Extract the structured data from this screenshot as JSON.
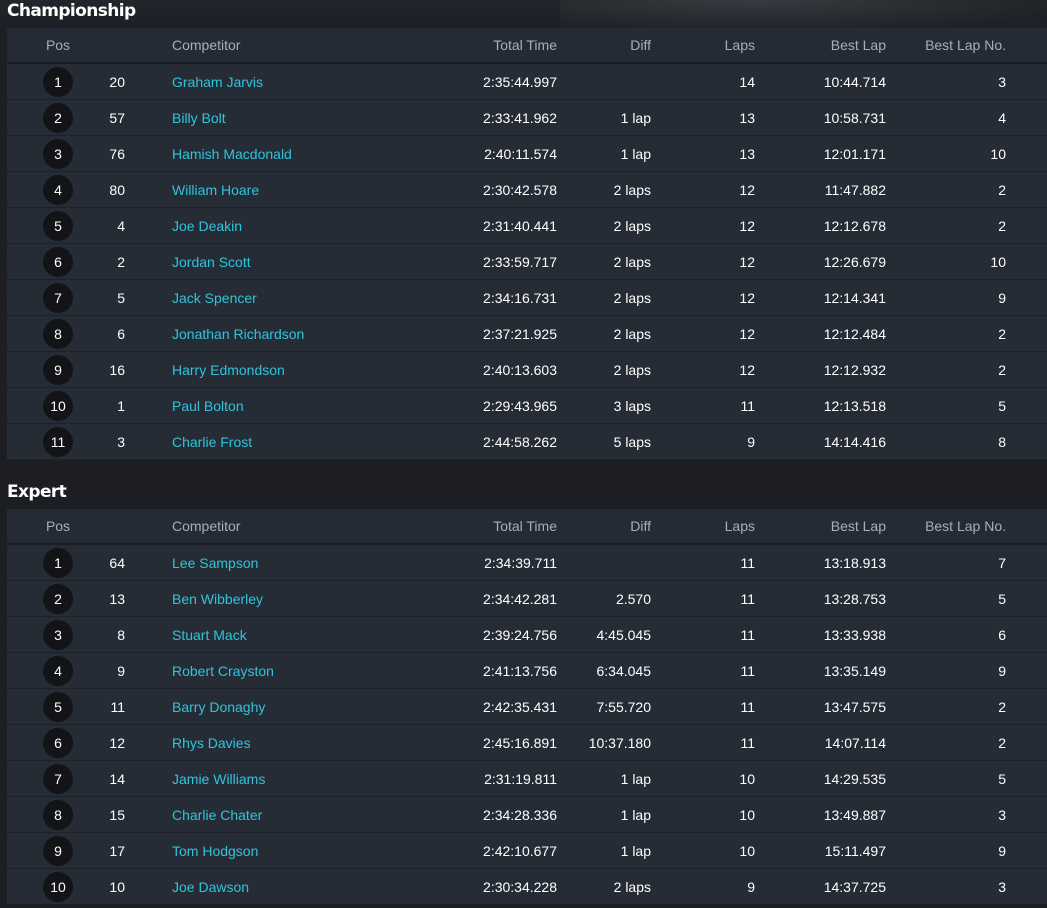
{
  "columns": {
    "pos": "Pos",
    "competitor": "Competitor",
    "total_time": "Total Time",
    "diff": "Diff",
    "laps": "Laps",
    "best_lap": "Best Lap",
    "best_lap_no": "Best Lap No."
  },
  "colors": {
    "link": "#2fc4dc",
    "table_bg": "#262c35",
    "page_bg": "#1b1e23",
    "badge_bg": "#121418"
  },
  "sections": [
    {
      "title": "Championship",
      "rows": [
        {
          "pos": "1",
          "num": "20",
          "competitor": "Graham Jarvis",
          "total_time": "2:35:44.997",
          "diff": "",
          "laps": "14",
          "best_lap": "10:44.714",
          "best_lap_no": "3"
        },
        {
          "pos": "2",
          "num": "57",
          "competitor": "Billy Bolt",
          "total_time": "2:33:41.962",
          "diff": "1 lap",
          "laps": "13",
          "best_lap": "10:58.731",
          "best_lap_no": "4"
        },
        {
          "pos": "3",
          "num": "76",
          "competitor": "Hamish Macdonald",
          "total_time": "2:40:11.574",
          "diff": "1 lap",
          "laps": "13",
          "best_lap": "12:01.171",
          "best_lap_no": "10"
        },
        {
          "pos": "4",
          "num": "80",
          "competitor": "William Hoare",
          "total_time": "2:30:42.578",
          "diff": "2 laps",
          "laps": "12",
          "best_lap": "11:47.882",
          "best_lap_no": "2"
        },
        {
          "pos": "5",
          "num": "4",
          "competitor": "Joe Deakin",
          "total_time": "2:31:40.441",
          "diff": "2 laps",
          "laps": "12",
          "best_lap": "12:12.678",
          "best_lap_no": "2"
        },
        {
          "pos": "6",
          "num": "2",
          "competitor": "Jordan Scott",
          "total_time": "2:33:59.717",
          "diff": "2 laps",
          "laps": "12",
          "best_lap": "12:26.679",
          "best_lap_no": "10"
        },
        {
          "pos": "7",
          "num": "5",
          "competitor": "Jack Spencer",
          "total_time": "2:34:16.731",
          "diff": "2 laps",
          "laps": "12",
          "best_lap": "12:14.341",
          "best_lap_no": "9"
        },
        {
          "pos": "8",
          "num": "6",
          "competitor": "Jonathan Richardson",
          "total_time": "2:37:21.925",
          "diff": "2 laps",
          "laps": "12",
          "best_lap": "12:12.484",
          "best_lap_no": "2"
        },
        {
          "pos": "9",
          "num": "16",
          "competitor": "Harry Edmondson",
          "total_time": "2:40:13.603",
          "diff": "2 laps",
          "laps": "12",
          "best_lap": "12:12.932",
          "best_lap_no": "2"
        },
        {
          "pos": "10",
          "num": "1",
          "competitor": "Paul Bolton",
          "total_time": "2:29:43.965",
          "diff": "3 laps",
          "laps": "11",
          "best_lap": "12:13.518",
          "best_lap_no": "5"
        },
        {
          "pos": "11",
          "num": "3",
          "competitor": "Charlie Frost",
          "total_time": "2:44:58.262",
          "diff": "5 laps",
          "laps": "9",
          "best_lap": "14:14.416",
          "best_lap_no": "8"
        }
      ]
    },
    {
      "title": "Expert",
      "rows": [
        {
          "pos": "1",
          "num": "64",
          "competitor": "Lee Sampson",
          "total_time": "2:34:39.711",
          "diff": "",
          "laps": "11",
          "best_lap": "13:18.913",
          "best_lap_no": "7"
        },
        {
          "pos": "2",
          "num": "13",
          "competitor": "Ben Wibberley",
          "total_time": "2:34:42.281",
          "diff": "2.570",
          "laps": "11",
          "best_lap": "13:28.753",
          "best_lap_no": "5"
        },
        {
          "pos": "3",
          "num": "8",
          "competitor": "Stuart Mack",
          "total_time": "2:39:24.756",
          "diff": "4:45.045",
          "laps": "11",
          "best_lap": "13:33.938",
          "best_lap_no": "6"
        },
        {
          "pos": "4",
          "num": "9",
          "competitor": "Robert Crayston",
          "total_time": "2:41:13.756",
          "diff": "6:34.045",
          "laps": "11",
          "best_lap": "13:35.149",
          "best_lap_no": "9"
        },
        {
          "pos": "5",
          "num": "11",
          "competitor": "Barry Donaghy",
          "total_time": "2:42:35.431",
          "diff": "7:55.720",
          "laps": "11",
          "best_lap": "13:47.575",
          "best_lap_no": "2"
        },
        {
          "pos": "6",
          "num": "12",
          "competitor": "Rhys Davies",
          "total_time": "2:45:16.891",
          "diff": "10:37.180",
          "laps": "11",
          "best_lap": "14:07.114",
          "best_lap_no": "2"
        },
        {
          "pos": "7",
          "num": "14",
          "competitor": "Jamie Williams",
          "total_time": "2:31:19.811",
          "diff": "1 lap",
          "laps": "10",
          "best_lap": "14:29.535",
          "best_lap_no": "5"
        },
        {
          "pos": "8",
          "num": "15",
          "competitor": "Charlie Chater",
          "total_time": "2:34:28.336",
          "diff": "1 lap",
          "laps": "10",
          "best_lap": "13:49.887",
          "best_lap_no": "3"
        },
        {
          "pos": "9",
          "num": "17",
          "competitor": "Tom Hodgson",
          "total_time": "2:42:10.677",
          "diff": "1 lap",
          "laps": "10",
          "best_lap": "15:11.497",
          "best_lap_no": "9"
        },
        {
          "pos": "10",
          "num": "10",
          "competitor": "Joe Dawson",
          "total_time": "2:30:34.228",
          "diff": "2 laps",
          "laps": "9",
          "best_lap": "14:37.725",
          "best_lap_no": "3"
        }
      ]
    }
  ]
}
